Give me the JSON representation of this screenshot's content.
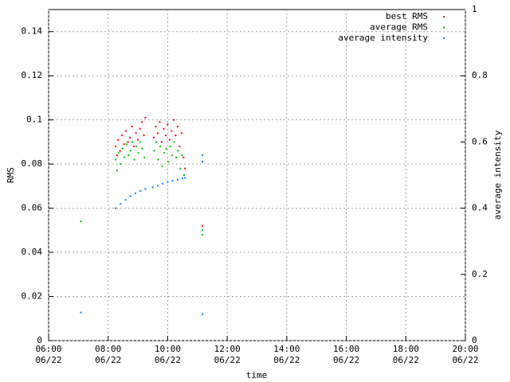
{
  "chart_data": {
    "type": "scatter",
    "xlabel": "time",
    "ylabel": "RMS",
    "y2label": "average intensity",
    "xlim": [
      "06/22 06:00",
      "06/22 20:00"
    ],
    "xticks": [
      {
        "value": "06/22 06:00",
        "label": [
          "06:00",
          "06/22"
        ]
      },
      {
        "value": "06/22 08:00",
        "label": [
          "08:00",
          "06/22"
        ]
      },
      {
        "value": "06/22 10:00",
        "label": [
          "10:00",
          "06/22"
        ]
      },
      {
        "value": "06/22 12:00",
        "label": [
          "12:00",
          "06/22"
        ]
      },
      {
        "value": "06/22 14:00",
        "label": [
          "14:00",
          "06/22"
        ]
      },
      {
        "value": "06/22 16:00",
        "label": [
          "16:00",
          "06/22"
        ]
      },
      {
        "value": "06/22 18:00",
        "label": [
          "18:00",
          "06/22"
        ]
      },
      {
        "value": "06/22 20:00",
        "label": [
          "20:00",
          "06/22"
        ]
      }
    ],
    "ylim": [
      0,
      0.15
    ],
    "yticks": [
      0,
      0.02,
      0.04,
      0.06,
      0.08,
      0.1,
      0.12,
      0.14
    ],
    "y2lim": [
      0,
      1
    ],
    "y2ticks": [
      0,
      0.2,
      0.4,
      0.6,
      0.8,
      1
    ],
    "grid": true,
    "legend": "top-right",
    "series": [
      {
        "name": "best RMS",
        "color": "#ff0000",
        "x": [
          "06/22 08:15",
          "06/22 08:18",
          "06/22 08:20",
          "06/22 08:24",
          "06/22 08:28",
          "06/22 08:32",
          "06/22 08:36",
          "06/22 08:40",
          "06/22 08:44",
          "06/22 08:48",
          "06/22 08:52",
          "06/22 08:56",
          "06/22 09:00",
          "06/22 09:04",
          "06/22 09:08",
          "06/22 09:12",
          "06/22 09:15",
          "06/22 09:32",
          "06/22 09:36",
          "06/22 09:40",
          "06/22 09:44",
          "06/22 09:48",
          "06/22 09:52",
          "06/22 09:56",
          "06/22 10:00",
          "06/22 10:04",
          "06/22 10:08",
          "06/22 10:12",
          "06/22 10:16",
          "06/22 10:20",
          "06/22 10:24",
          "06/22 10:28",
          "06/22 10:32",
          "06/22 10:35",
          "06/22 11:10"
        ],
        "values": [
          0.088,
          0.084,
          0.091,
          0.086,
          0.093,
          0.089,
          0.095,
          0.09,
          0.092,
          0.097,
          0.088,
          0.094,
          0.091,
          0.096,
          0.099,
          0.093,
          0.101,
          0.092,
          0.097,
          0.094,
          0.099,
          0.09,
          0.096,
          0.093,
          0.098,
          0.091,
          0.095,
          0.1,
          0.093,
          0.097,
          0.088,
          0.094,
          0.083,
          0.078,
          0.052
        ]
      },
      {
        "name": "average RMS",
        "color": "#00c000",
        "x": [
          "06/22 08:15",
          "06/22 08:18",
          "06/22 08:21",
          "06/22 08:25",
          "06/22 08:29",
          "06/22 08:33",
          "06/22 08:37",
          "06/22 08:41",
          "06/22 08:45",
          "06/22 08:49",
          "06/22 08:53",
          "06/22 08:57",
          "06/22 09:01",
          "06/22 09:05",
          "06/22 09:09",
          "06/22 09:13",
          "06/22 09:33",
          "06/22 09:37",
          "06/22 09:41",
          "06/22 09:45",
          "06/22 09:49",
          "06/22 09:53",
          "06/22 09:57",
          "06/22 10:01",
          "06/22 10:05",
          "06/22 10:09",
          "06/22 10:13",
          "06/22 10:17",
          "06/22 10:21",
          "06/22 10:25",
          "06/22 10:29",
          "06/22 10:33",
          "06/22 07:05",
          "06/22 11:10",
          "06/22 11:10"
        ],
        "values": [
          0.082,
          0.077,
          0.085,
          0.08,
          0.087,
          0.083,
          0.089,
          0.084,
          0.086,
          0.09,
          0.082,
          0.088,
          0.085,
          0.09,
          0.087,
          0.083,
          0.086,
          0.09,
          0.082,
          0.088,
          0.079,
          0.085,
          0.087,
          0.081,
          0.088,
          0.084,
          0.09,
          0.083,
          0.086,
          0.078,
          0.084,
          0.075,
          0.054,
          0.048,
          0.05
        ]
      },
      {
        "name": "average intensity",
        "color": "#0080ff",
        "axis": "y2",
        "x": [
          "06/22 07:05",
          "06/22 08:15",
          "06/22 08:25",
          "06/22 08:35",
          "06/22 08:45",
          "06/22 08:55",
          "06/22 09:05",
          "06/22 09:15",
          "06/22 09:30",
          "06/22 09:40",
          "06/22 09:50",
          "06/22 10:00",
          "06/22 10:10",
          "06/22 10:20",
          "06/22 10:30",
          "06/22 10:35",
          "06/22 11:10",
          "06/22 11:10",
          "06/22 11:10"
        ],
        "values": [
          0.085,
          0.4,
          0.413,
          0.425,
          0.436,
          0.445,
          0.452,
          0.458,
          0.463,
          0.468,
          0.474,
          0.479,
          0.482,
          0.486,
          0.49,
          0.492,
          0.56,
          0.54,
          0.08
        ]
      }
    ]
  }
}
